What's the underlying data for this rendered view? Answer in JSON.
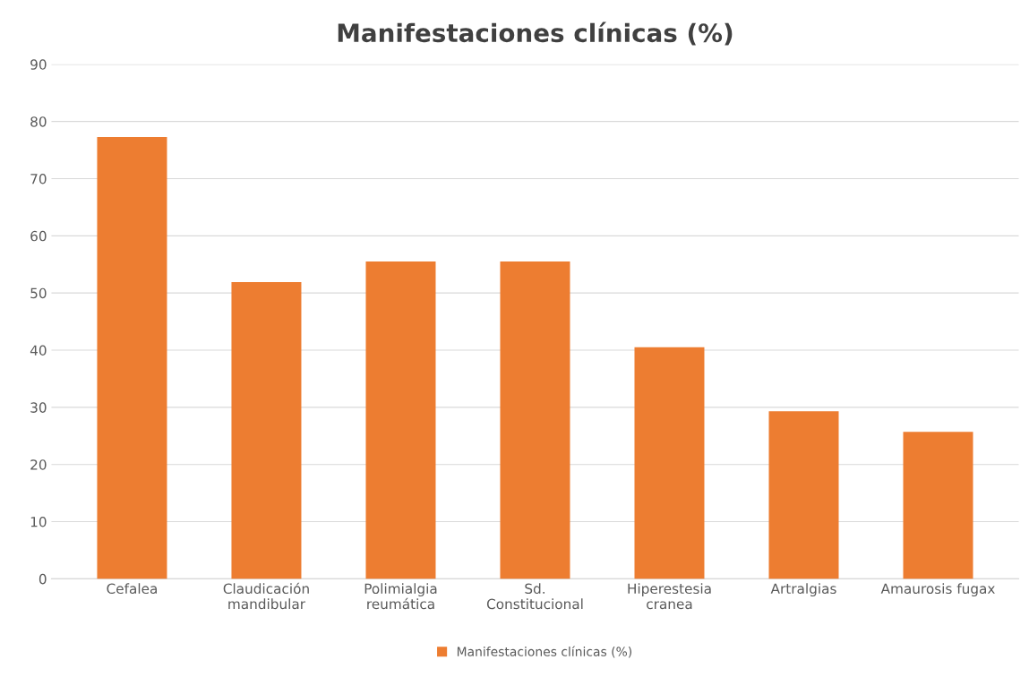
{
  "chart_data": {
    "type": "bar",
    "title": "Manifestaciones clínicas (%)",
    "categories": [
      "Cefalea",
      "Claudicación\nmandibular",
      "Polimialgia\nreumática",
      "Sd.\nConstitucional",
      "Hiperestesia\ncranea",
      "Artralgias",
      "Amaurosis fugax"
    ],
    "series": [
      {
        "name": "Manifestaciones clínicas (%)",
        "color": "#ed7d31",
        "values": [
          77.3,
          51.9,
          55.5,
          55.5,
          40.5,
          29.3,
          25.7
        ]
      }
    ],
    "ylim": [
      0,
      90
    ],
    "yticks": [
      0,
      10,
      20,
      30,
      40,
      50,
      60,
      70,
      80,
      90
    ],
    "grid": "y",
    "legend": "bottom"
  }
}
